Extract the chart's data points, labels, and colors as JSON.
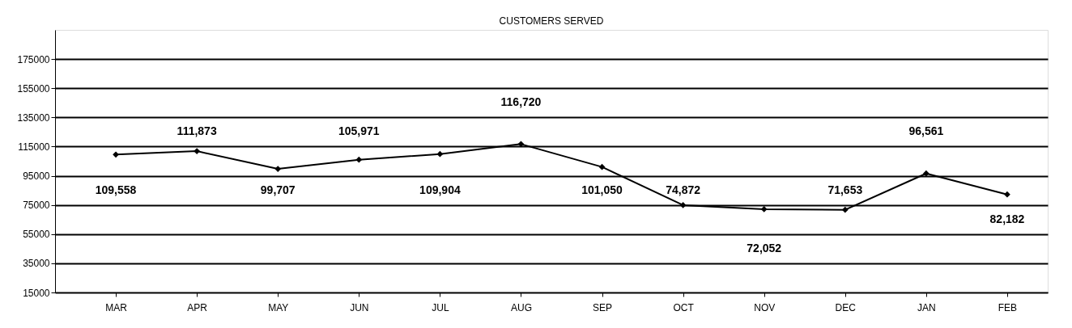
{
  "chart_data": {
    "type": "line",
    "title": "CUSTOMERS SERVED",
    "categories": [
      "MAR",
      "APR",
      "MAY",
      "JUN",
      "JUL",
      "AUG",
      "SEP",
      "OCT",
      "NOV",
      "DEC",
      "JAN",
      "FEB"
    ],
    "series": [
      {
        "color": "#000000",
        "values": [
          109558,
          111873,
          99707,
          105971,
          109904,
          116720,
          101050,
          74872,
          72052,
          71653,
          96561,
          82182
        ],
        "value_labels": [
          "109,558",
          "111,873",
          "99,707",
          "105,971",
          "109,904",
          "116,720",
          "101,050",
          "74,872",
          "72,052",
          "71,653",
          "96,561",
          "82,182"
        ]
      }
    ],
    "ylim": [
      15000,
      195000
    ],
    "yticks": [
      15000,
      35000,
      55000,
      75000,
      95000,
      115000,
      135000,
      155000,
      175000
    ],
    "grid": "y",
    "marker": "diamond",
    "line_style": "solid"
  }
}
